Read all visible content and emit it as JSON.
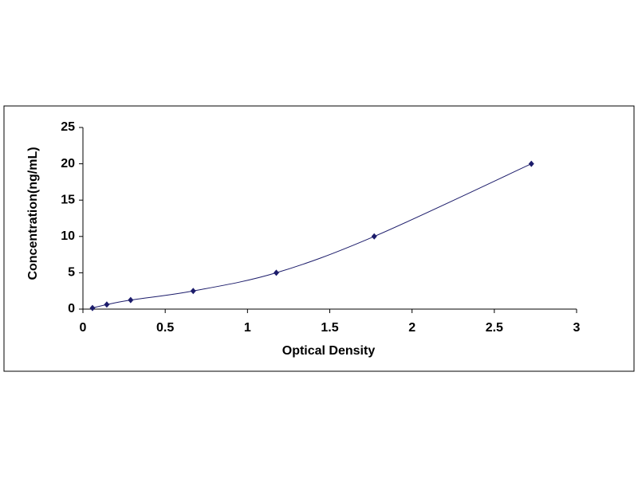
{
  "chart_data": {
    "type": "scatter",
    "x_label": "Optical Density",
    "y_label": "Concentration(ng/mL)",
    "series": [
      {
        "color": "#1c1c6b",
        "x": [
          0.058,
          0.145,
          0.29,
          0.67,
          1.175,
          1.77,
          2.725
        ],
        "values": [
          0.156,
          0.625,
          1.25,
          2.5,
          5,
          10,
          20
        ]
      }
    ],
    "smooth_line": true,
    "xlim": [
      0,
      3
    ],
    "xticks": [
      0,
      0.5,
      1,
      1.5,
      2,
      2.5,
      3
    ],
    "ylim": [
      0,
      25
    ],
    "yticks": [
      0,
      5,
      10,
      15,
      20,
      25
    ],
    "grid": false
  }
}
